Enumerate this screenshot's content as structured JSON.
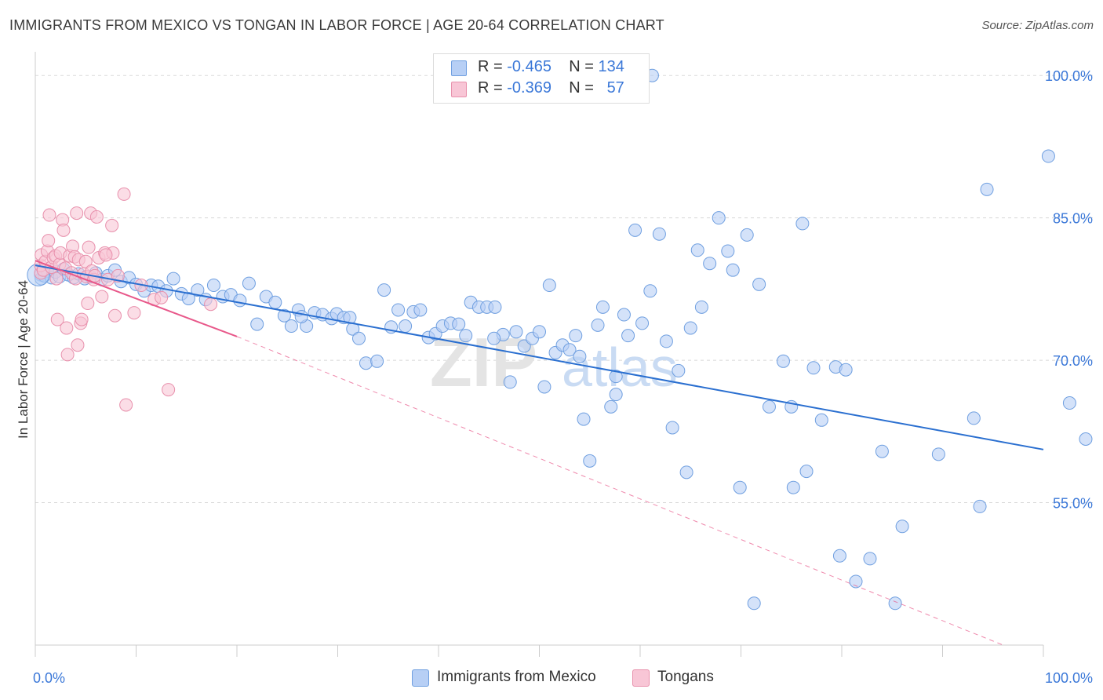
{
  "header": {
    "title": "IMMIGRANTS FROM MEXICO VS TONGAN IN LABOR FORCE | AGE 20-64 CORRELATION CHART",
    "source": "Source: ZipAtlas.com"
  },
  "legend": {
    "rows": [
      {
        "r_label": "R =",
        "r_value": "-0.465",
        "n_label": "N =",
        "n_value": "134"
      },
      {
        "r_label": "R =",
        "r_value": "-0.369",
        "n_label": "N =",
        "n_value": "57"
      }
    ]
  },
  "bottom_legend": {
    "series1": "Immigrants from Mexico",
    "series2": "Tongans"
  },
  "watermark": {
    "part1": "ZIP",
    "part2": "atlas"
  },
  "colors": {
    "blue_fill": "#b7cff5",
    "blue_stroke": "#6f9fe0",
    "blue_line": "#2a6fd0",
    "pink_fill": "#f8c6d6",
    "pink_stroke": "#e890ac",
    "pink_line": "#e8588a",
    "tick_label": "#3b78d8",
    "grid": "#d8d8d8"
  },
  "chart_data": {
    "type": "scatter",
    "title": "IMMIGRANTS FROM MEXICO VS TONGAN IN LABOR FORCE | AGE 20-64 CORRELATION CHART",
    "xlabel": "",
    "ylabel": "In Labor Force | Age 20-64",
    "xlim": [
      0,
      100
    ],
    "ylim": [
      40,
      102
    ],
    "x_tick_labels": [
      {
        "value": 0,
        "label": "0.0%"
      },
      {
        "value": 100,
        "label": "100.0%"
      }
    ],
    "y_tick_labels": [
      {
        "value": 100,
        "label": "100.0%"
      },
      {
        "value": 85,
        "label": "85.0%"
      },
      {
        "value": 70,
        "label": "70.0%"
      },
      {
        "value": 55,
        "label": "55.0%"
      }
    ],
    "grid": true,
    "legend_position": "top-center",
    "series": [
      {
        "name": "Immigrants from Mexico",
        "color": "#6f9fe0",
        "r": -0.465,
        "n": 134,
        "trend": {
          "x": [
            0,
            100
          ],
          "y": [
            80.0,
            60.6
          ]
        },
        "points": [
          [
            0.3,
            79.0
          ],
          [
            0.6,
            78.6
          ],
          [
            0.9,
            78.9
          ],
          [
            1.2,
            79.4
          ],
          [
            1.6,
            78.7
          ],
          [
            2.0,
            79.3
          ],
          [
            2.4,
            78.8
          ],
          [
            2.8,
            79.6
          ],
          [
            3.3,
            79.0
          ],
          [
            3.8,
            78.7
          ],
          [
            4.3,
            79.1
          ],
          [
            4.9,
            78.6
          ],
          [
            5.5,
            78.8
          ],
          [
            6.0,
            79.2
          ],
          [
            6.6,
            78.5
          ],
          [
            7.2,
            78.9
          ],
          [
            7.9,
            79.5
          ],
          [
            8.5,
            78.3
          ],
          [
            9.3,
            78.7
          ],
          [
            10.0,
            78.0
          ],
          [
            10.8,
            77.3
          ],
          [
            11.5,
            77.9
          ],
          [
            12.2,
            77.8
          ],
          [
            13.0,
            77.3
          ],
          [
            13.7,
            78.6
          ],
          [
            14.5,
            77.0
          ],
          [
            15.2,
            76.5
          ],
          [
            16.1,
            77.4
          ],
          [
            16.9,
            76.4
          ],
          [
            17.7,
            77.9
          ],
          [
            18.6,
            76.7
          ],
          [
            19.4,
            76.9
          ],
          [
            20.3,
            76.3
          ],
          [
            21.2,
            78.1
          ],
          [
            22.0,
            73.8
          ],
          [
            22.9,
            76.7
          ],
          [
            23.8,
            76.1
          ],
          [
            24.7,
            74.7
          ],
          [
            25.4,
            73.6
          ],
          [
            26.1,
            75.3
          ],
          [
            26.9,
            73.6
          ],
          [
            27.7,
            75.0
          ],
          [
            28.5,
            74.8
          ],
          [
            29.4,
            74.4
          ],
          [
            29.9,
            74.9
          ],
          [
            30.6,
            74.5
          ],
          [
            31.5,
            73.3
          ],
          [
            32.1,
            72.3
          ],
          [
            32.8,
            69.7
          ],
          [
            33.9,
            69.9
          ],
          [
            34.6,
            77.4
          ],
          [
            35.3,
            73.5
          ],
          [
            36.0,
            75.3
          ],
          [
            36.7,
            73.6
          ],
          [
            37.5,
            75.1
          ],
          [
            38.2,
            75.3
          ],
          [
            39.0,
            72.4
          ],
          [
            39.7,
            72.8
          ],
          [
            40.4,
            73.6
          ],
          [
            41.2,
            73.9
          ],
          [
            42.0,
            73.8
          ],
          [
            42.7,
            72.6
          ],
          [
            43.2,
            76.1
          ],
          [
            44.0,
            75.6
          ],
          [
            44.8,
            75.6
          ],
          [
            45.6,
            75.6
          ],
          [
            46.4,
            72.7
          ],
          [
            47.1,
            67.7
          ],
          [
            47.7,
            73.0
          ],
          [
            48.5,
            71.5
          ],
          [
            49.3,
            72.3
          ],
          [
            50.0,
            73.0
          ],
          [
            50.5,
            67.2
          ],
          [
            51.0,
            77.9
          ],
          [
            51.6,
            70.8
          ],
          [
            52.3,
            71.6
          ],
          [
            53.0,
            71.1
          ],
          [
            53.6,
            72.6
          ],
          [
            54.4,
            63.8
          ],
          [
            55.0,
            59.4
          ],
          [
            55.8,
            73.7
          ],
          [
            56.3,
            75.6
          ],
          [
            57.1,
            65.1
          ],
          [
            57.6,
            66.4
          ],
          [
            58.4,
            74.8
          ],
          [
            58.8,
            72.6
          ],
          [
            59.5,
            83.7
          ],
          [
            60.2,
            73.9
          ],
          [
            61.0,
            77.3
          ],
          [
            61.9,
            83.3
          ],
          [
            62.6,
            72.0
          ],
          [
            63.2,
            62.9
          ],
          [
            63.8,
            68.9
          ],
          [
            64.6,
            58.2
          ],
          [
            65.0,
            73.4
          ],
          [
            65.7,
            81.6
          ],
          [
            66.1,
            75.6
          ],
          [
            66.9,
            80.2
          ],
          [
            67.8,
            85.0
          ],
          [
            68.7,
            81.5
          ],
          [
            69.2,
            79.5
          ],
          [
            69.9,
            56.6
          ],
          [
            70.6,
            83.2
          ],
          [
            71.3,
            44.4
          ],
          [
            71.8,
            78.0
          ],
          [
            72.8,
            65.1
          ],
          [
            74.2,
            69.9
          ],
          [
            75.0,
            65.1
          ],
          [
            75.2,
            56.6
          ],
          [
            76.1,
            84.4
          ],
          [
            76.5,
            58.3
          ],
          [
            77.2,
            69.2
          ],
          [
            78.0,
            63.7
          ],
          [
            79.4,
            69.3
          ],
          [
            79.8,
            49.4
          ],
          [
            80.4,
            69.0
          ],
          [
            81.4,
            46.7
          ],
          [
            82.8,
            49.1
          ],
          [
            84.0,
            60.4
          ],
          [
            85.3,
            44.4
          ],
          [
            86.0,
            52.5
          ],
          [
            89.6,
            60.1
          ],
          [
            93.1,
            63.9
          ],
          [
            93.7,
            54.6
          ],
          [
            94.4,
            88.0
          ],
          [
            100.5,
            91.5
          ],
          [
            102.6,
            65.5
          ],
          [
            104.2,
            61.7
          ],
          [
            61.2,
            100.0
          ],
          [
            26.4,
            74.6
          ],
          [
            31.2,
            74.5
          ],
          [
            45.5,
            72.3
          ],
          [
            54.0,
            70.4
          ],
          [
            57.6,
            68.3
          ]
        ]
      },
      {
        "name": "Tongans",
        "color": "#e890ac",
        "r": -0.369,
        "n": 57,
        "trend": {
          "x": [
            0,
            20
          ],
          "y": [
            80.5,
            72.5
          ]
        },
        "trend_extension": {
          "x": [
            20,
            96
          ],
          "y": [
            72.5,
            40.0
          ]
        },
        "points": [
          [
            0.2,
            79.2
          ],
          [
            0.4,
            80.0
          ],
          [
            0.6,
            81.1
          ],
          [
            0.8,
            79.5
          ],
          [
            1.0,
            80.4
          ],
          [
            1.2,
            81.5
          ],
          [
            1.3,
            82.6
          ],
          [
            1.4,
            85.3
          ],
          [
            1.6,
            79.8
          ],
          [
            1.8,
            80.8
          ],
          [
            2.0,
            81.0
          ],
          [
            2.1,
            78.6
          ],
          [
            2.2,
            74.3
          ],
          [
            2.4,
            80.1
          ],
          [
            2.5,
            81.3
          ],
          [
            2.7,
            84.8
          ],
          [
            2.8,
            83.7
          ],
          [
            3.0,
            79.7
          ],
          [
            3.1,
            73.4
          ],
          [
            3.2,
            70.6
          ],
          [
            3.4,
            81.0
          ],
          [
            3.6,
            79.2
          ],
          [
            3.7,
            82.0
          ],
          [
            3.9,
            80.9
          ],
          [
            4.0,
            78.6
          ],
          [
            4.1,
            85.5
          ],
          [
            4.2,
            71.6
          ],
          [
            4.3,
            80.6
          ],
          [
            4.5,
            73.9
          ],
          [
            4.6,
            74.3
          ],
          [
            4.8,
            79.1
          ],
          [
            5.0,
            80.4
          ],
          [
            5.1,
            78.8
          ],
          [
            5.2,
            76.0
          ],
          [
            5.3,
            81.9
          ],
          [
            5.5,
            85.5
          ],
          [
            5.6,
            79.4
          ],
          [
            5.8,
            78.5
          ],
          [
            5.9,
            78.9
          ],
          [
            6.1,
            85.1
          ],
          [
            6.3,
            80.8
          ],
          [
            6.6,
            76.7
          ],
          [
            6.9,
            81.3
          ],
          [
            7.2,
            78.5
          ],
          [
            7.6,
            84.2
          ],
          [
            7.7,
            81.3
          ],
          [
            7.9,
            74.7
          ],
          [
            7.0,
            81.1
          ],
          [
            8.2,
            78.9
          ],
          [
            8.8,
            87.5
          ],
          [
            9.0,
            65.3
          ],
          [
            9.8,
            75.0
          ],
          [
            10.5,
            77.9
          ],
          [
            11.8,
            76.4
          ],
          [
            12.5,
            76.6
          ],
          [
            13.2,
            66.9
          ],
          [
            17.4,
            75.9
          ]
        ]
      }
    ]
  }
}
